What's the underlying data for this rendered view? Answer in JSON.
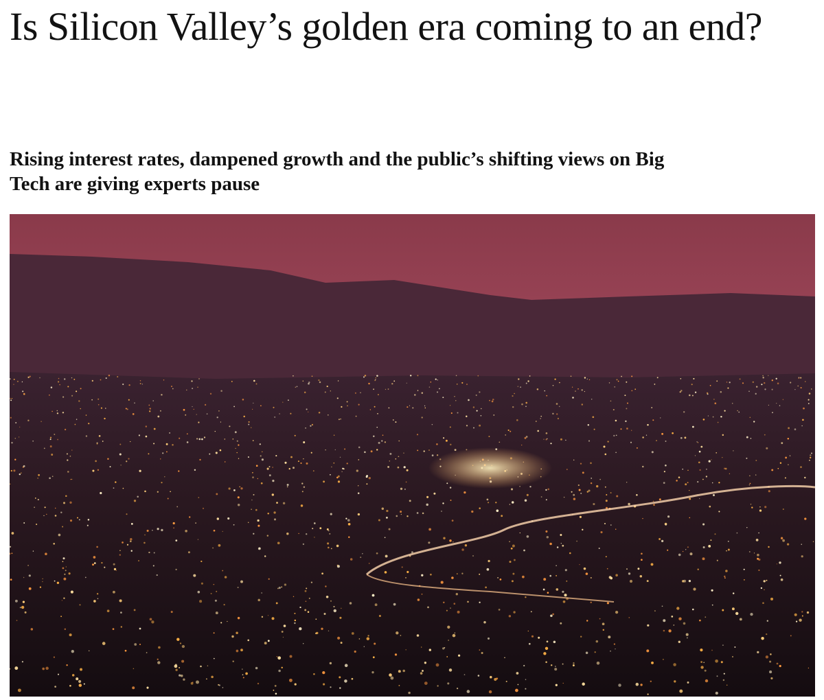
{
  "article": {
    "headline": "Is Silicon Valley’s golden era coming to an end?",
    "standfirst": "Rising interest rates, dampened growth and the public’s shifting views on Big Tech are giving experts pause"
  }
}
